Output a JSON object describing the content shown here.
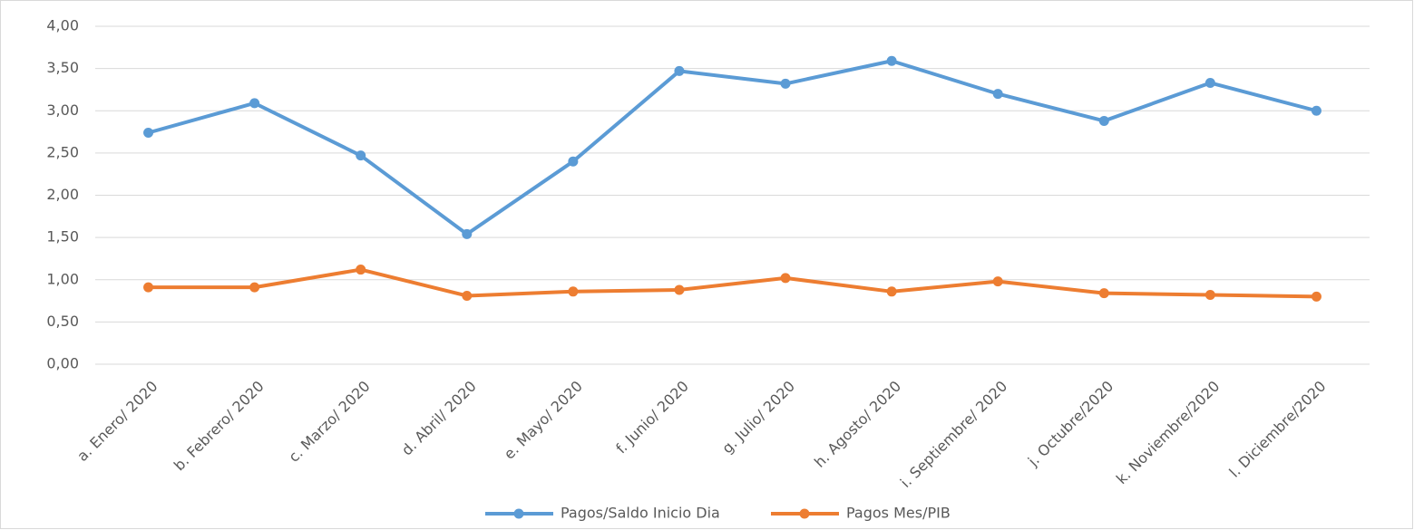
{
  "chart_data": {
    "type": "line",
    "categories": [
      "a. Enero/ 2020",
      "b. Febrero/ 2020",
      "c. Marzo/ 2020",
      "d. Abril/ 2020",
      "e. Mayo/ 2020",
      "f. Junio/ 2020",
      "g. Julio/ 2020",
      "h. Agosto/ 2020",
      "i. Septiembre/ 2020",
      "j. Octubre/2020",
      "k. Noviembre/2020",
      "l. Diciembre/2020"
    ],
    "series": [
      {
        "name": "Pagos/Saldo Inicio Dia",
        "color": "#5b9bd5",
        "values": [
          2.74,
          3.09,
          2.47,
          1.54,
          2.4,
          3.47,
          3.32,
          3.59,
          3.2,
          2.88,
          3.33,
          3.0
        ]
      },
      {
        "name": "Pagos Mes/PIB",
        "color": "#ed7d31",
        "values": [
          0.91,
          0.91,
          1.12,
          0.81,
          0.86,
          0.88,
          1.02,
          0.86,
          0.98,
          0.84,
          0.82,
          0.8
        ]
      }
    ],
    "ylim": [
      0,
      4
    ],
    "yticks": [
      {
        "value": 0,
        "label": "0,00"
      },
      {
        "value": 0.5,
        "label": "0,50"
      },
      {
        "value": 1,
        "label": "1,00"
      },
      {
        "value": 1.5,
        "label": "1,50"
      },
      {
        "value": 2,
        "label": "2,00"
      },
      {
        "value": 2.5,
        "label": "2,50"
      },
      {
        "value": 3,
        "label": "3,00"
      },
      {
        "value": 3.5,
        "label": "3,50"
      },
      {
        "value": 4,
        "label": "4,00"
      }
    ],
    "grid": true,
    "legend": "bottom"
  }
}
